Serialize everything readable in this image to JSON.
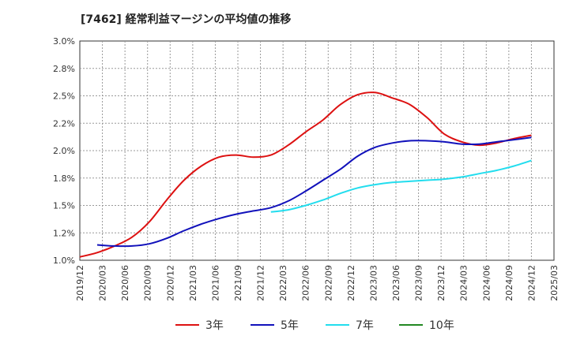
{
  "title": "[7462]  経常利益マージンの平均値の推移",
  "chart_data": {
    "type": "line",
    "title": "[7462]  経常利益マージンの平均値の推移",
    "xlabel": "",
    "ylabel": "",
    "ylim": [
      1.0,
      3.0
    ],
    "y_ticks": [
      "1.0%",
      "1.2%",
      "1.5%",
      "1.8%",
      "2.0%",
      "2.2%",
      "2.5%",
      "2.8%",
      "3.0%"
    ],
    "x_ticks": [
      "2019/12",
      "2020/03",
      "2020/06",
      "2020/09",
      "2020/12",
      "2021/03",
      "2021/06",
      "2021/09",
      "2021/12",
      "2022/03",
      "2022/06",
      "2022/09",
      "2022/12",
      "2023/03",
      "2023/06",
      "2023/09",
      "2023/12",
      "2024/03",
      "2024/06",
      "2024/09",
      "2024/12",
      "2025/03"
    ],
    "grid": true,
    "legend_position": "bottom",
    "series": [
      {
        "name": "3年",
        "color": "#dd1111",
        "values": [
          1.03,
          1.07,
          1.13,
          1.21,
          1.35,
          1.55,
          1.73,
          1.86,
          1.94,
          1.96,
          1.94,
          1.96,
          2.05,
          2.17,
          2.28,
          2.42,
          2.51,
          2.53,
          2.48,
          2.42,
          2.3,
          2.15,
          2.08,
          2.05,
          2.07,
          2.11,
          2.14
        ]
      },
      {
        "name": "5年",
        "color": "#1111bb",
        "values": [
          null,
          1.14,
          1.13,
          1.13,
          1.15,
          1.2,
          1.27,
          1.33,
          1.38,
          1.42,
          1.45,
          1.48,
          1.54,
          1.63,
          1.73,
          1.83,
          1.95,
          2.03,
          2.07,
          2.09,
          2.09,
          2.08,
          2.06,
          2.06,
          2.08,
          2.1,
          2.12
        ]
      },
      {
        "name": "7年",
        "color": "#22ddee",
        "values": [
          null,
          null,
          null,
          null,
          null,
          null,
          null,
          null,
          null,
          null,
          null,
          1.44,
          1.46,
          1.5,
          1.55,
          1.61,
          1.66,
          1.69,
          1.71,
          1.72,
          1.73,
          1.74,
          1.76,
          1.79,
          1.82,
          1.86,
          1.91
        ]
      },
      {
        "name": "10年",
        "color": "#228822",
        "values": []
      }
    ]
  }
}
